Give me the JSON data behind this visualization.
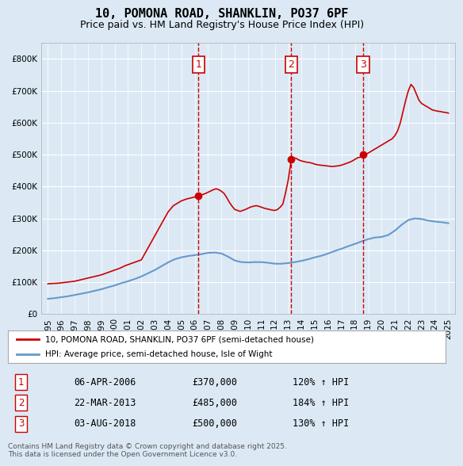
{
  "title_line1": "10, POMONA ROAD, SHANKLIN, PO37 6PF",
  "title_line2": "Price paid vs. HM Land Registry's House Price Index (HPI)",
  "background_color": "#dce9f5",
  "plot_bg_color": "#dce9f5",
  "red_line_color": "#cc0000",
  "blue_line_color": "#6699cc",
  "grid_color": "#ffffff",
  "annotation_box_color": "#cc0000",
  "ylim": [
    0,
    850000
  ],
  "yticks": [
    0,
    100000,
    200000,
    300000,
    400000,
    500000,
    600000,
    700000,
    800000
  ],
  "ytick_labels": [
    "£0",
    "£100K",
    "£200K",
    "£300K",
    "£400K",
    "£500K",
    "£600K",
    "£700K",
    "£800K"
  ],
  "xlim_start": 1994.5,
  "xlim_end": 2025.5,
  "legend_label_red": "10, POMONA ROAD, SHANKLIN, PO37 6PF (semi-detached house)",
  "legend_label_blue": "HPI: Average price, semi-detached house, Isle of Wight",
  "sale1_date": "06-APR-2006",
  "sale1_price": "£370,000",
  "sale1_hpi": "120% ↑ HPI",
  "sale1_x": 2006.27,
  "sale1_y": 370000,
  "sale2_date": "22-MAR-2013",
  "sale2_price": "£485,000",
  "sale2_hpi": "184% ↑ HPI",
  "sale2_x": 2013.23,
  "sale2_y": 485000,
  "sale3_date": "03-AUG-2018",
  "sale3_price": "£500,000",
  "sale3_hpi": "130% ↑ HPI",
  "sale3_x": 2018.6,
  "sale3_y": 500000,
  "footer_text": "Contains HM Land Registry data © Crown copyright and database right 2025.\nThis data is licensed under the Open Government Licence v3.0.",
  "red_data": {
    "years": [
      1995.0,
      1995.2,
      1995.4,
      1995.6,
      1995.8,
      1996.0,
      1996.2,
      1996.4,
      1996.6,
      1996.8,
      1997.0,
      1997.2,
      1997.4,
      1997.6,
      1997.8,
      1998.0,
      1998.2,
      1998.4,
      1998.6,
      1998.8,
      1999.0,
      1999.2,
      1999.4,
      1999.6,
      1999.8,
      2000.0,
      2000.2,
      2000.4,
      2000.6,
      2000.8,
      2001.0,
      2001.2,
      2001.4,
      2001.6,
      2001.8,
      2002.0,
      2002.2,
      2002.4,
      2002.6,
      2002.8,
      2003.0,
      2003.2,
      2003.4,
      2003.6,
      2003.8,
      2004.0,
      2004.2,
      2004.4,
      2004.6,
      2004.8,
      2005.0,
      2005.2,
      2005.4,
      2005.6,
      2005.8,
      2006.0,
      2006.27,
      2006.4,
      2006.6,
      2006.8,
      2007.0,
      2007.2,
      2007.4,
      2007.6,
      2007.8,
      2008.0,
      2008.2,
      2008.4,
      2008.6,
      2008.8,
      2009.0,
      2009.2,
      2009.4,
      2009.6,
      2009.8,
      2010.0,
      2010.2,
      2010.4,
      2010.6,
      2010.8,
      2011.0,
      2011.2,
      2011.4,
      2011.6,
      2011.8,
      2012.0,
      2012.2,
      2012.4,
      2012.6,
      2012.8,
      2013.0,
      2013.23,
      2013.4,
      2013.6,
      2013.8,
      2014.0,
      2014.2,
      2014.4,
      2014.6,
      2014.8,
      2015.0,
      2015.2,
      2015.4,
      2015.6,
      2015.8,
      2016.0,
      2016.2,
      2016.4,
      2016.6,
      2016.8,
      2017.0,
      2017.2,
      2017.4,
      2017.6,
      2017.8,
      2018.0,
      2018.2,
      2018.4,
      2018.6,
      2018.6,
      2018.8,
      2019.0,
      2019.2,
      2019.4,
      2019.6,
      2019.8,
      2020.0,
      2020.2,
      2020.4,
      2020.6,
      2020.8,
      2021.0,
      2021.2,
      2021.4,
      2021.6,
      2021.8,
      2022.0,
      2022.2,
      2022.4,
      2022.6,
      2022.8,
      2023.0,
      2023.2,
      2023.4,
      2023.6,
      2023.8,
      2024.0,
      2024.2,
      2024.4,
      2024.6,
      2024.8,
      2025.0
    ],
    "values": [
      95000,
      95500,
      96000,
      96500,
      97000,
      98000,
      99000,
      100000,
      101000,
      102000,
      103000,
      105000,
      107000,
      109000,
      111000,
      113000,
      115000,
      117000,
      119000,
      121000,
      123000,
      126000,
      129000,
      132000,
      135000,
      138000,
      141000,
      144000,
      148000,
      152000,
      155000,
      158000,
      161000,
      164000,
      167000,
      170000,
      185000,
      200000,
      215000,
      230000,
      245000,
      260000,
      275000,
      290000,
      305000,
      320000,
      330000,
      340000,
      345000,
      350000,
      355000,
      358000,
      361000,
      363000,
      365000,
      367000,
      370000,
      372000,
      375000,
      378000,
      382000,
      386000,
      390000,
      393000,
      390000,
      385000,
      378000,
      365000,
      350000,
      338000,
      328000,
      325000,
      322000,
      325000,
      328000,
      332000,
      336000,
      338000,
      340000,
      338000,
      335000,
      332000,
      330000,
      328000,
      326000,
      325000,
      328000,
      335000,
      345000,
      380000,
      420000,
      485000,
      490000,
      488000,
      483000,
      480000,
      478000,
      476000,
      475000,
      473000,
      470000,
      468000,
      467000,
      466000,
      465000,
      464000,
      463000,
      463000,
      464000,
      465000,
      467000,
      470000,
      473000,
      476000,
      480000,
      485000,
      490000,
      492000,
      495000,
      500000,
      500000,
      505000,
      510000,
      515000,
      520000,
      525000,
      530000,
      535000,
      540000,
      545000,
      550000,
      560000,
      575000,
      600000,
      635000,
      670000,
      700000,
      720000,
      710000,
      690000,
      670000,
      660000,
      655000,
      650000,
      645000,
      640000,
      638000,
      636000,
      635000,
      633000,
      632000,
      630000
    ]
  },
  "blue_data": {
    "years": [
      1995.0,
      1995.5,
      1996.0,
      1996.5,
      1997.0,
      1997.5,
      1998.0,
      1998.5,
      1999.0,
      1999.5,
      2000.0,
      2000.5,
      2001.0,
      2001.5,
      2002.0,
      2002.5,
      2003.0,
      2003.5,
      2004.0,
      2004.5,
      2005.0,
      2005.5,
      2006.0,
      2006.5,
      2007.0,
      2007.5,
      2008.0,
      2008.5,
      2009.0,
      2009.5,
      2010.0,
      2010.5,
      2011.0,
      2011.5,
      2012.0,
      2012.5,
      2013.0,
      2013.5,
      2014.0,
      2014.5,
      2015.0,
      2015.5,
      2016.0,
      2016.5,
      2017.0,
      2017.5,
      2018.0,
      2018.5,
      2019.0,
      2019.5,
      2020.0,
      2020.5,
      2021.0,
      2021.5,
      2022.0,
      2022.5,
      2023.0,
      2023.5,
      2024.0,
      2024.5,
      2025.0
    ],
    "values": [
      48000,
      50000,
      53000,
      56000,
      60000,
      64000,
      68000,
      73000,
      78000,
      84000,
      90000,
      97000,
      103000,
      110000,
      118000,
      128000,
      138000,
      150000,
      162000,
      172000,
      178000,
      182000,
      185000,
      188000,
      192000,
      193000,
      190000,
      180000,
      168000,
      163000,
      162000,
      163000,
      163000,
      161000,
      158000,
      158000,
      160000,
      163000,
      167000,
      172000,
      178000,
      183000,
      190000,
      198000,
      205000,
      213000,
      220000,
      228000,
      235000,
      240000,
      242000,
      248000,
      262000,
      280000,
      295000,
      300000,
      298000,
      293000,
      290000,
      288000,
      285000
    ]
  }
}
